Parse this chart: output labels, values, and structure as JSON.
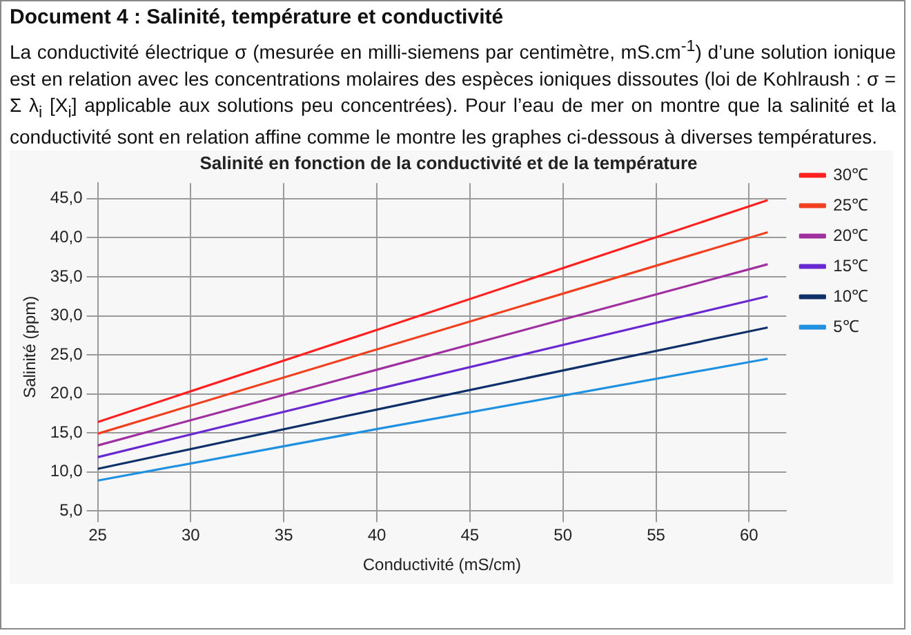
{
  "chart_data": {
    "type": "line",
    "title": "Salinité en fonction de la conductivité et de la température",
    "annotations": [
      "Document 4 : Salinité, température et conductivité",
      "La conductivité électrique σ (mesurée en milli-siemens par centimètre, mS.cm$^{-1}$) d’une solution ionique est en relation avec les concentrations molaires des espèces ioniques dissoutes (loi de Kohlraush : σ = Σ λ$_{i}$ [X$_{i}$] applicable aux solutions peu concentrées). Pour l’eau de mer on montre que la salinité et la conductivité sont en relation affine comme le montre les graphes ci-dessous à diverses températures."
    ],
    "xlabel": "Conductivité (mS/cm)",
    "ylabel": "Salinité (ppm)",
    "x": [
      25,
      40,
      61
    ],
    "series": [
      {
        "name": "30℃",
        "color": "#ff2020",
        "values": [
          16.4,
          28.2,
          44.8
        ]
      },
      {
        "name": "25℃",
        "color": "#f04020",
        "values": [
          14.9,
          25.7,
          40.7
        ]
      },
      {
        "name": "20℃",
        "color": "#a030a0",
        "values": [
          13.4,
          23.1,
          36.6
        ]
      },
      {
        "name": "15℃",
        "color": "#6a28d0",
        "values": [
          11.9,
          20.6,
          32.5
        ]
      },
      {
        "name": "10℃",
        "color": "#10306a",
        "values": [
          10.4,
          18.0,
          28.5
        ]
      },
      {
        "name": "5℃",
        "color": "#2090e0",
        "values": [
          8.9,
          15.5,
          24.5
        ]
      }
    ],
    "xlim": [
      25,
      62
    ],
    "xticks": [
      25,
      30,
      35,
      40,
      45,
      50,
      55,
      60
    ],
    "ylim": [
      5,
      47
    ],
    "yticks": [
      {
        "value": 5,
        "label": "5,0"
      },
      {
        "value": 10,
        "label": "10,0"
      },
      {
        "value": 15,
        "label": "15,0"
      },
      {
        "value": 20,
        "label": "20,0"
      },
      {
        "value": 25,
        "label": "25,0"
      },
      {
        "value": 30,
        "label": "30,0"
      },
      {
        "value": 35,
        "label": "35,0"
      },
      {
        "value": 40,
        "label": "40,0"
      },
      {
        "value": 45,
        "label": "45,0"
      }
    ],
    "grid": true,
    "legend": "right",
    "marker": "none",
    "line_style": "solid"
  }
}
